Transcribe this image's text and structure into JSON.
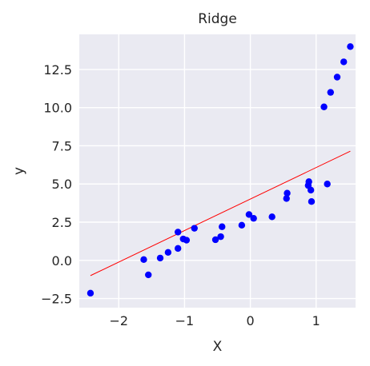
{
  "chart_data": {
    "type": "scatter",
    "title": "Ridge",
    "xlabel": "X",
    "ylabel": "y",
    "xlim": [
      -2.6,
      1.6
    ],
    "ylim": [
      -3.1,
      14.8
    ],
    "xticks": [
      -2,
      -1,
      0,
      1
    ],
    "xtick_labels": [
      "−2",
      "−1",
      "0",
      "1"
    ],
    "yticks": [
      -2.5,
      0.0,
      2.5,
      5.0,
      7.5,
      10.0,
      12.5
    ],
    "ytick_labels": [
      "−2.5",
      "0.0",
      "2.5",
      "5.0",
      "7.5",
      "10.0",
      "12.5"
    ],
    "grid": true,
    "background": "#EAEAF2",
    "point_color": "#0000FF",
    "line_color": "#FF0000",
    "points": [
      {
        "x": -2.43,
        "y": -2.15
      },
      {
        "x": -1.62,
        "y": 0.05
      },
      {
        "x": -1.55,
        "y": -0.95
      },
      {
        "x": -1.37,
        "y": 0.15
      },
      {
        "x": -1.25,
        "y": 0.52
      },
      {
        "x": -1.1,
        "y": 1.85
      },
      {
        "x": -1.1,
        "y": 0.78
      },
      {
        "x": -1.02,
        "y": 1.4
      },
      {
        "x": -0.97,
        "y": 1.32
      },
      {
        "x": -0.85,
        "y": 2.1
      },
      {
        "x": -0.53,
        "y": 1.35
      },
      {
        "x": -0.45,
        "y": 1.55
      },
      {
        "x": -0.43,
        "y": 2.2
      },
      {
        "x": -0.13,
        "y": 2.3
      },
      {
        "x": -0.02,
        "y": 3.0
      },
      {
        "x": 0.05,
        "y": 2.75
      },
      {
        "x": 0.33,
        "y": 2.85
      },
      {
        "x": 0.55,
        "y": 4.05
      },
      {
        "x": 0.56,
        "y": 4.4
      },
      {
        "x": 0.88,
        "y": 4.9
      },
      {
        "x": 0.89,
        "y": 5.15
      },
      {
        "x": 0.92,
        "y": 4.6
      },
      {
        "x": 0.93,
        "y": 3.85
      },
      {
        "x": 1.12,
        "y": 10.05
      },
      {
        "x": 1.17,
        "y": 5.0
      },
      {
        "x": 1.22,
        "y": 11.0
      },
      {
        "x": 1.32,
        "y": 12.0
      },
      {
        "x": 1.42,
        "y": 13.0
      },
      {
        "x": 1.52,
        "y": 14.0
      }
    ],
    "fit_line": {
      "x": [
        -2.43,
        1.52
      ],
      "y": [
        -1.0,
        7.15
      ]
    }
  }
}
